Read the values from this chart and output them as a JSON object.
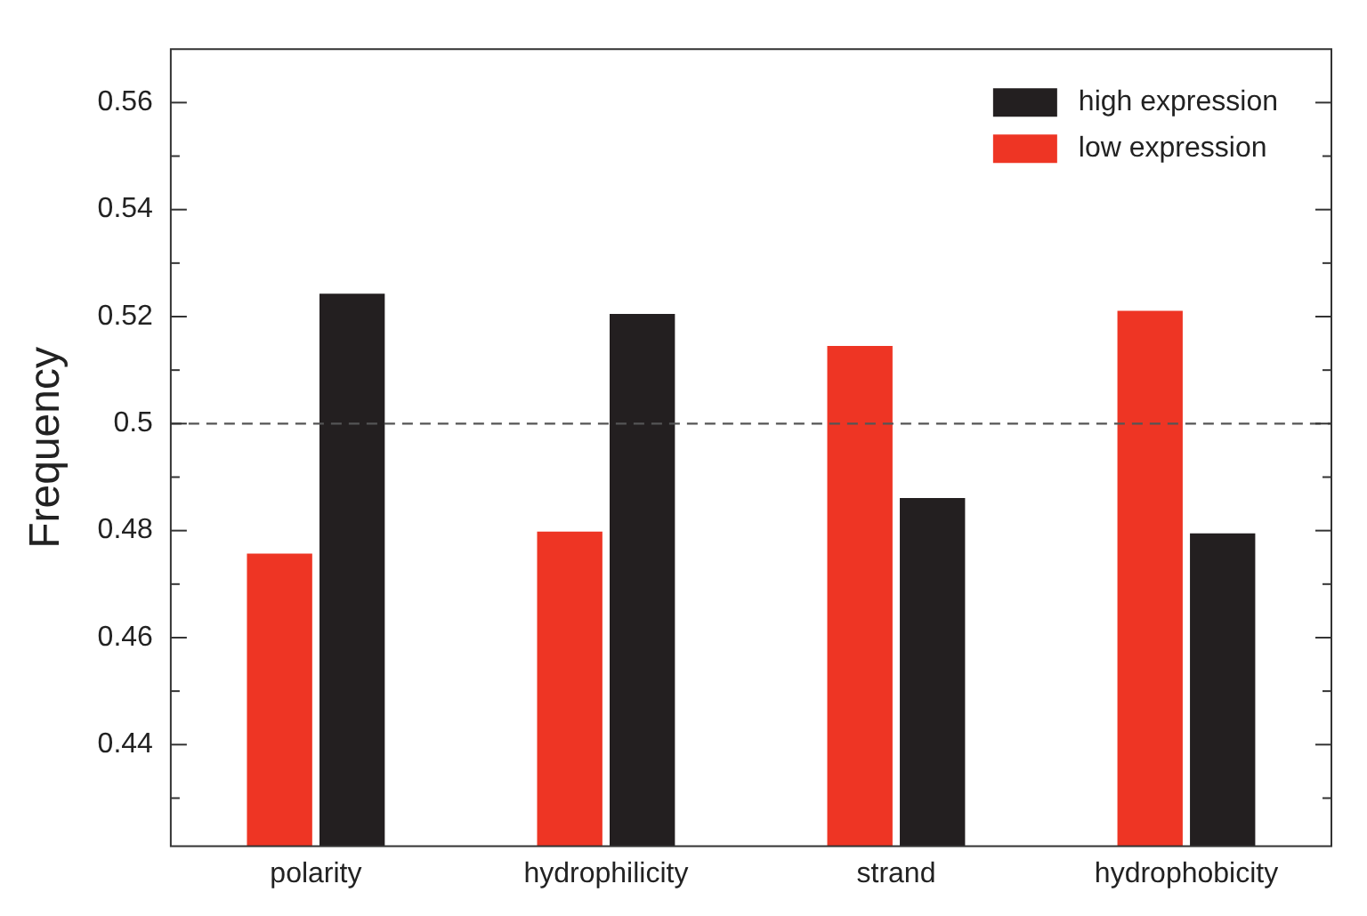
{
  "chart_data": {
    "type": "bar",
    "ylabel": "Frequency",
    "categories": [
      "polarity",
      "hydrophilicity",
      "strand",
      "hydrophobicity"
    ],
    "series": [
      {
        "name": "low expression",
        "color": "#ee3524",
        "values": [
          0.4757,
          0.4798,
          0.5145,
          0.5211
        ]
      },
      {
        "name": "high expression",
        "color": "#231f20",
        "values": [
          0.5243,
          0.5205,
          0.4861,
          0.4795
        ]
      }
    ],
    "ylim": [
      0.421,
      0.57
    ],
    "yticks": [
      {
        "value": 0.43,
        "label": null
      },
      0.44,
      {
        "value": 0.45,
        "label": null
      },
      0.46,
      {
        "value": 0.47,
        "label": null
      },
      0.48,
      {
        "value": 0.49,
        "label": null
      },
      {
        "value": 0.5,
        "label": "0.5"
      },
      {
        "value": 0.51,
        "label": null
      },
      0.52,
      {
        "value": 0.53,
        "label": null
      },
      0.54,
      {
        "value": 0.55,
        "label": null
      },
      0.56
    ],
    "ref_lines": [
      {
        "axis": "y",
        "value": 0.5,
        "color": "#555555",
        "line_style": "dashed"
      }
    ],
    "legend": "top right",
    "grid": false
  }
}
